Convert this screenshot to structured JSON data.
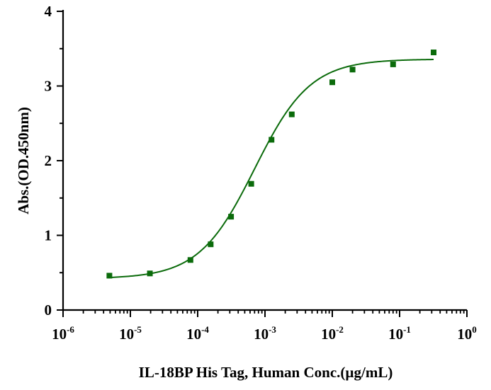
{
  "chart_data": {
    "type": "scatter",
    "xlabel": "IL-18BP His Tag, Human Conc.(µg/mL)",
    "ylabel": "Abs.(OD.450nm)",
    "xscale": "log",
    "xlim": [
      1e-06,
      1
    ],
    "ylim": [
      0,
      4
    ],
    "x_tick_labels": [
      {
        "base": "10",
        "exp": "-6"
      },
      {
        "base": "10",
        "exp": "-5"
      },
      {
        "base": "10",
        "exp": "-4"
      },
      {
        "base": "10",
        "exp": "-3"
      },
      {
        "base": "10",
        "exp": "-2"
      },
      {
        "base": "10",
        "exp": "-1"
      },
      {
        "base": "10",
        "exp": "0"
      }
    ],
    "y_tick_labels": [
      "0",
      "1",
      "2",
      "3",
      "4"
    ],
    "grid": false,
    "color": "#0b6b0b",
    "points": [
      {
        "x": 4.88e-06,
        "y": 0.46
      },
      {
        "x": 1.95e-05,
        "y": 0.49
      },
      {
        "x": 7.81e-05,
        "y": 0.67
      },
      {
        "x": 0.000156,
        "y": 0.88
      },
      {
        "x": 0.000313,
        "y": 1.25
      },
      {
        "x": 0.000625,
        "y": 1.69
      },
      {
        "x": 0.00125,
        "y": 2.28
      },
      {
        "x": 0.0025,
        "y": 2.62
      },
      {
        "x": 0.01,
        "y": 3.05
      },
      {
        "x": 0.02,
        "y": 3.22
      },
      {
        "x": 0.08,
        "y": 3.29
      },
      {
        "x": 0.32,
        "y": 3.45
      }
    ],
    "fit": {
      "model": "4PL",
      "bottom": 0.42,
      "top": 3.36,
      "ec50": 0.0007,
      "hill": 1.05,
      "x_range": [
        4.5e-06,
        0.32
      ]
    }
  }
}
